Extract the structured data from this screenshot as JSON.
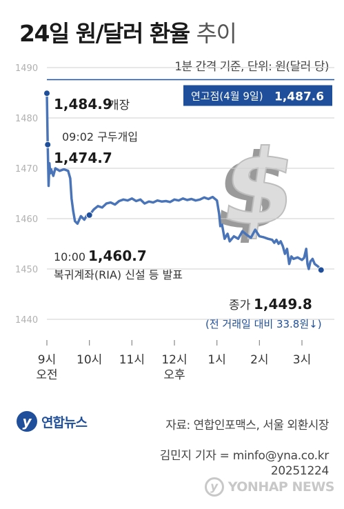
{
  "title": {
    "main": "24일 원/달러 환율",
    "sub": "추이"
  },
  "unit_note": "1분 간격 기준, 단위: 원(달러 당)",
  "chart_data": {
    "type": "line",
    "ylim": [
      1440,
      1490
    ],
    "yticks": [
      1440,
      1450,
      1460,
      1470,
      1480,
      1490
    ],
    "xticks": [
      {
        "label": "9시",
        "sub": "오전",
        "hour": 9
      },
      {
        "label": "10시",
        "sub": "",
        "hour": 10
      },
      {
        "label": "11시",
        "sub": "",
        "hour": 11
      },
      {
        "label": "12시",
        "sub": "오후",
        "hour": 12
      },
      {
        "label": "1시",
        "sub": "",
        "hour": 13
      },
      {
        "label": "2시",
        "sub": "",
        "hour": 14
      },
      {
        "label": "3시",
        "sub": "",
        "hour": 15
      }
    ],
    "xlim": [
      9,
      15.6
    ],
    "year_high": {
      "label": "연고점(4월 9일)",
      "value": 1487.6,
      "value_label": "1,487.6"
    },
    "series": [
      {
        "color": "#4a74b8",
        "points": [
          [
            9.0,
            1484.9
          ],
          [
            9.02,
            1474.7
          ],
          [
            9.04,
            1466.5
          ],
          [
            9.06,
            1471.0
          ],
          [
            9.08,
            1469.0
          ],
          [
            9.1,
            1469.8
          ],
          [
            9.15,
            1468.5
          ],
          [
            9.2,
            1470.0
          ],
          [
            9.3,
            1469.5
          ],
          [
            9.4,
            1469.8
          ],
          [
            9.5,
            1469.5
          ],
          [
            9.55,
            1468.0
          ],
          [
            9.58,
            1464.0
          ],
          [
            9.62,
            1461.5
          ],
          [
            9.66,
            1459.5
          ],
          [
            9.72,
            1459.0
          ],
          [
            9.8,
            1460.5
          ],
          [
            9.88,
            1459.8
          ],
          [
            9.95,
            1460.8
          ],
          [
            10.0,
            1460.7
          ],
          [
            10.1,
            1461.8
          ],
          [
            10.2,
            1462.5
          ],
          [
            10.3,
            1462.2
          ],
          [
            10.4,
            1463.0
          ],
          [
            10.5,
            1463.2
          ],
          [
            10.6,
            1462.8
          ],
          [
            10.7,
            1463.5
          ],
          [
            10.8,
            1463.8
          ],
          [
            10.9,
            1463.6
          ],
          [
            11.0,
            1464.0
          ],
          [
            11.1,
            1463.5
          ],
          [
            11.2,
            1463.8
          ],
          [
            11.3,
            1463.0
          ],
          [
            11.4,
            1463.4
          ],
          [
            11.5,
            1463.2
          ],
          [
            11.6,
            1463.6
          ],
          [
            11.7,
            1463.4
          ],
          [
            11.8,
            1463.5
          ],
          [
            11.9,
            1463.3
          ],
          [
            12.0,
            1463.8
          ],
          [
            12.1,
            1463.6
          ],
          [
            12.2,
            1464.0
          ],
          [
            12.3,
            1463.7
          ],
          [
            12.4,
            1463.9
          ],
          [
            12.5,
            1463.6
          ],
          [
            12.6,
            1463.8
          ],
          [
            12.7,
            1464.2
          ],
          [
            12.8,
            1463.9
          ],
          [
            12.9,
            1464.3
          ],
          [
            13.0,
            1463.6
          ],
          [
            13.05,
            1461.0
          ],
          [
            13.08,
            1458.5
          ],
          [
            13.12,
            1458.8
          ],
          [
            13.18,
            1456.0
          ],
          [
            13.25,
            1457.0
          ],
          [
            13.3,
            1455.5
          ],
          [
            13.4,
            1456.5
          ],
          [
            13.5,
            1456.0
          ],
          [
            13.6,
            1457.5
          ],
          [
            13.7,
            1456.8
          ],
          [
            13.8,
            1456.2
          ],
          [
            13.9,
            1457.8
          ],
          [
            14.0,
            1456.5
          ],
          [
            14.1,
            1456.3
          ],
          [
            14.2,
            1456.0
          ],
          [
            14.3,
            1455.8
          ],
          [
            14.35,
            1455.2
          ],
          [
            14.4,
            1455.8
          ],
          [
            14.45,
            1455.0
          ],
          [
            14.5,
            1455.5
          ],
          [
            14.55,
            1454.5
          ],
          [
            14.6,
            1453.0
          ],
          [
            14.65,
            1454.0
          ],
          [
            14.7,
            1451.0
          ],
          [
            14.75,
            1452.5
          ],
          [
            14.8,
            1452.0
          ],
          [
            14.9,
            1452.3
          ],
          [
            15.0,
            1451.8
          ],
          [
            15.05,
            1452.2
          ],
          [
            15.1,
            1454.0
          ],
          [
            15.13,
            1451.0
          ],
          [
            15.16,
            1450.0
          ],
          [
            15.2,
            1451.5
          ],
          [
            15.25,
            1452.0
          ],
          [
            15.3,
            1451.0
          ],
          [
            15.38,
            1450.5
          ],
          [
            15.45,
            1449.8
          ]
        ]
      }
    ],
    "annotations": [
      {
        "id": "open",
        "label_value": "1,484.9",
        "label_text": "개장",
        "x": 9.0,
        "y": 1484.9
      },
      {
        "id": "buy",
        "caption": "09:02 구두개입",
        "label_value": "1,474.7",
        "x": 9.02,
        "y": 1474.7
      },
      {
        "id": "ria",
        "time": "10:00",
        "label_value": "1,460.7",
        "caption": "복귀계좌(RIA) 신설 등 발표",
        "x": 10.0,
        "y": 1460.7
      },
      {
        "id": "close",
        "label_text": "종가",
        "label_value": "1,449.8",
        "caption": "(전 거래일 대비 33.8원↓)",
        "x": 15.45,
        "y": 1449.8
      }
    ]
  },
  "footer": {
    "logo_text": "연합뉴스",
    "source": "자료: 연합인포맥스, 서울 외환시장",
    "reporter": "김민지 기자 = minfo@yna.co.kr",
    "date": "20251224",
    "watermark": "YONHAP NEWS"
  },
  "colors": {
    "line": "#4a74b8",
    "accent": "#1f4f9a",
    "grid": "#cfcfcf"
  }
}
